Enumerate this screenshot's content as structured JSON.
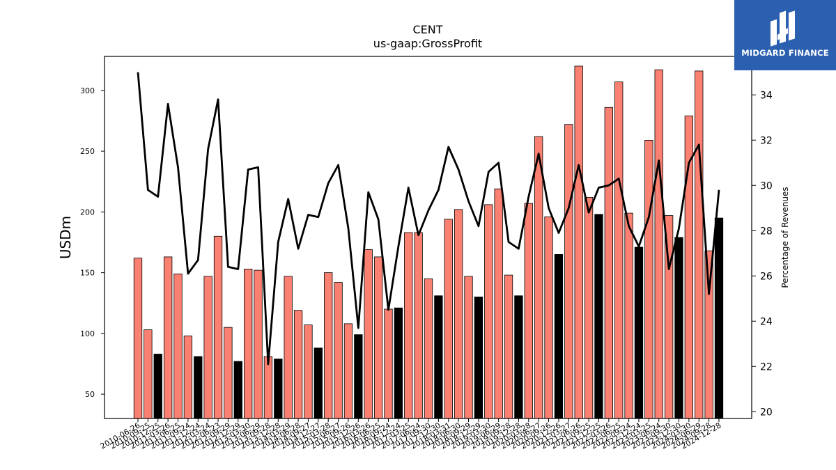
{
  "brand": {
    "name": "MIDGARD FINANCE",
    "bg_color": "#2b5fb0"
  },
  "chart_data": {
    "type": "bar",
    "title": "CENT",
    "subtitle": "us-gaap:GrossProfit",
    "ylabel": "USDm",
    "y2label": "Percentage of Revenues",
    "ylim": [
      30,
      328
    ],
    "y2lim": [
      19.7,
      35.7
    ],
    "yticks": [
      50,
      100,
      150,
      200,
      250,
      300
    ],
    "y2ticks": [
      20,
      22,
      24,
      26,
      28,
      30,
      32,
      34
    ],
    "colors": {
      "bar": "#fa8072",
      "bar_highlight": "#000000",
      "line": "#000000"
    },
    "series": [
      {
        "name": "",
        "kind": "bar",
        "axis": "left",
        "values": [
          162,
          103,
          83,
          163,
          149,
          98,
          81,
          147,
          180,
          105,
          77,
          153,
          152,
          81,
          79,
          147,
          119,
          107,
          88,
          150,
          142,
          108,
          99,
          169,
          163,
          120,
          121,
          183,
          183,
          145,
          131,
          194,
          202,
          147,
          130,
          206,
          219,
          148,
          131,
          207,
          262,
          196,
          165,
          272,
          320,
          212,
          198,
          286,
          307,
          199,
          171,
          259,
          317,
          197,
          179,
          279,
          316,
          168,
          195
        ],
        "highlight": [
          false,
          false,
          true,
          false,
          false,
          false,
          true,
          false,
          false,
          false,
          true,
          false,
          false,
          false,
          true,
          false,
          false,
          false,
          true,
          false,
          false,
          false,
          true,
          false,
          false,
          false,
          true,
          false,
          false,
          false,
          true,
          false,
          false,
          false,
          true,
          false,
          false,
          false,
          true,
          false,
          false,
          false,
          true,
          false,
          false,
          false,
          true,
          false,
          false,
          false,
          true,
          false,
          false,
          false,
          true,
          false,
          false,
          false,
          true
        ]
      },
      {
        "name": "",
        "kind": "line",
        "axis": "right",
        "values": [
          35.0,
          29.8,
          29.5,
          33.6,
          30.8,
          26.1,
          26.7,
          31.6,
          33.8,
          26.4,
          26.3,
          30.7,
          30.8,
          22.1,
          27.5,
          29.4,
          27.2,
          28.7,
          28.6,
          30.1,
          30.9,
          28.1,
          23.7,
          29.7,
          28.5,
          24.5,
          27.3,
          29.9,
          27.8,
          28.9,
          29.8,
          31.7,
          30.7,
          29.3,
          28.2,
          30.6,
          31.0,
          27.5,
          27.2,
          29.5,
          31.4,
          29.0,
          27.9,
          29.0,
          30.9,
          28.8,
          29.9,
          30.0,
          30.3,
          28.2,
          27.3,
          28.6,
          31.1,
          26.3,
          28.1,
          31.0,
          31.8,
          25.2,
          29.8
        ]
      }
    ],
    "categories": [
      "2010-06-26",
      "2010-09-25",
      "2010-12-25",
      "2011-03-26",
      "2011-06-25",
      "2011-09-24",
      "2011-12-24",
      "2012-03-24",
      "2012-06-23",
      "2012-09-29",
      "2012-12-29",
      "2013-03-30",
      "2013-06-29",
      "2013-09-28",
      "2013-12-28",
      "2014-03-29",
      "2014-06-28",
      "2014-09-27",
      "2014-12-27",
      "2015-03-28",
      "2015-06-27",
      "2015-09-26",
      "2015-12-26",
      "2016-03-26",
      "2016-06-25",
      "2016-09-24",
      "2016-12-24",
      "2017-03-25",
      "2017-06-24",
      "2017-09-30",
      "2017-12-30",
      "2018-03-31",
      "2018-06-30",
      "2018-09-29",
      "2018-12-29",
      "2019-03-30",
      "2019-06-29",
      "2019-09-28",
      "2019-12-28",
      "2020-03-28",
      "2020-06-27",
      "2020-09-26",
      "2020-12-26",
      "2021-03-27",
      "2021-06-26",
      "2021-09-25",
      "2021-12-25",
      "2022-03-26",
      "2022-06-25",
      "2022-09-24",
      "2022-12-24",
      "2023-03-25",
      "2023-06-24",
      "2023-09-30",
      "2023-12-30",
      "2024-03-30",
      "2024-06-29",
      "2024-09-28",
      "2024-12-28"
    ],
    "grid": false,
    "legend": "none"
  }
}
